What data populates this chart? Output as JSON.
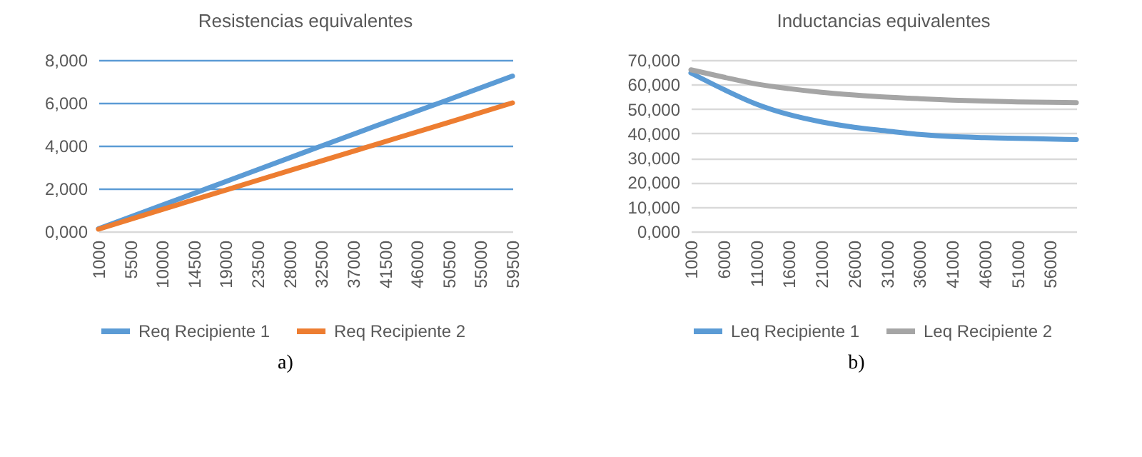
{
  "chart_data": [
    {
      "type": "line",
      "title": "Resistencias equivalentes",
      "x": [
        1000,
        10000,
        20000,
        30000,
        40000,
        50000,
        59500
      ],
      "series": [
        {
          "name": "Req Recipiente 1",
          "color": "#5b9bd5",
          "values": [
            0.12,
            1.22,
            2.45,
            3.68,
            4.9,
            6.09,
            7.25
          ]
        },
        {
          "name": "Req Recipiente 2",
          "color": "#ed7d31",
          "values": [
            0.1,
            1.02,
            2.03,
            3.04,
            4.04,
            5.04,
            6.0
          ]
        }
      ],
      "xlim": [
        1000,
        59500
      ],
      "xticks": [
        1000,
        5500,
        10000,
        14500,
        19000,
        23500,
        28000,
        32500,
        37000,
        41500,
        46000,
        50500,
        55000,
        59500
      ],
      "ylim": [
        0,
        8
      ],
      "yticks": [
        {
          "value": 0,
          "label": "0,000"
        },
        {
          "value": 2,
          "label": "2,000"
        },
        {
          "value": 4,
          "label": "4,000"
        },
        {
          "value": 6,
          "label": "6,000"
        },
        {
          "value": 8,
          "label": "8,000"
        }
      ],
      "grid": "y",
      "legend": "bottom",
      "annotations": [
        "a)"
      ]
    },
    {
      "type": "line",
      "title": "Inductancias equivalentes",
      "x": [
        1000,
        6000,
        11000,
        16000,
        21000,
        26000,
        31000,
        36000,
        41000,
        46000,
        51000,
        56000,
        60000
      ],
      "series": [
        {
          "name": "Leq Recipiente 1",
          "color": "#5b9bd5",
          "values": [
            64.7,
            58,
            52,
            47.7,
            44.7,
            42.5,
            41,
            39.6,
            38.7,
            38.3,
            38,
            37.7,
            37.5
          ]
        },
        {
          "name": "Leq Recipiente 2",
          "color": "#a5a5a5",
          "values": [
            66,
            63,
            60.2,
            58.3,
            56.8,
            55.7,
            54.8,
            54.2,
            53.6,
            53.2,
            52.9,
            52.7,
            52.6
          ]
        }
      ],
      "xlim": [
        1000,
        60000
      ],
      "xticks": [
        1000,
        6000,
        11000,
        16000,
        21000,
        26000,
        31000,
        36000,
        41000,
        46000,
        51000,
        56000
      ],
      "ylim": [
        0,
        70
      ],
      "yticks": [
        {
          "value": 0,
          "label": "0,000"
        },
        {
          "value": 10,
          "label": "10,000"
        },
        {
          "value": 20,
          "label": "20,000"
        },
        {
          "value": 30,
          "label": "30,000"
        },
        {
          "value": 40,
          "label": "40,000"
        },
        {
          "value": 50,
          "label": "50,000"
        },
        {
          "value": 60,
          "label": "60,000"
        },
        {
          "value": 70,
          "label": "70,000"
        }
      ],
      "grid": "y",
      "legend": "bottom",
      "annotations": [
        "b)"
      ]
    }
  ]
}
